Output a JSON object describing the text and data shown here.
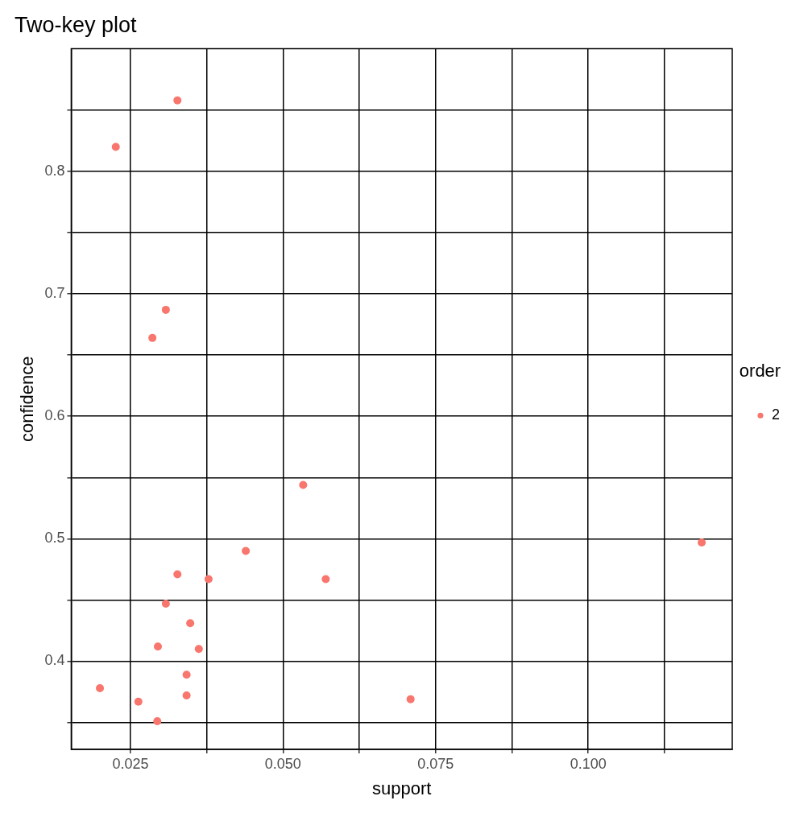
{
  "chart_data": {
    "type": "scatter",
    "title": "Two-key plot",
    "xlabel": "support",
    "ylabel": "confidence",
    "legend_title": "order",
    "xlim": [
      0.0153,
      0.1236
    ],
    "ylim": [
      0.328,
      0.9003
    ],
    "xticks": [
      0.025,
      {
        "value": 0.0375,
        "label": null
      },
      {
        "value": 0.05,
        "label": "0.050"
      },
      {
        "value": 0.0625,
        "label": null
      },
      0.075,
      {
        "value": 0.0875,
        "label": null
      },
      {
        "value": 0.1,
        "label": "0.100"
      },
      {
        "value": 0.1125,
        "label": null
      }
    ],
    "yticks": [
      {
        "value": 0.35,
        "label": null
      },
      0.4,
      {
        "value": 0.45,
        "label": null
      },
      0.5,
      {
        "value": 0.55,
        "label": null
      },
      0.6,
      {
        "value": 0.65,
        "label": null
      },
      0.7,
      {
        "value": 0.75,
        "label": null
      },
      0.8,
      {
        "value": 0.85,
        "label": null
      }
    ],
    "grid": true,
    "legend": "right",
    "marker": "circle",
    "series": [
      {
        "name": "2",
        "color": "#f8766d",
        "x": [
          0.0327,
          0.0226,
          0.0308,
          0.0286,
          0.0533,
          0.1186,
          0.0439,
          0.0327,
          0.0378,
          0.057,
          0.0308,
          0.0348,
          0.0295,
          0.0362,
          0.0342,
          0.02,
          0.0342,
          0.0263,
          0.0709,
          0.0294
        ],
        "values": [
          0.858,
          0.82,
          0.687,
          0.664,
          0.544,
          0.497,
          0.49,
          0.471,
          0.467,
          0.467,
          0.447,
          0.431,
          0.412,
          0.41,
          0.389,
          0.378,
          0.372,
          0.367,
          0.369,
          0.351
        ]
      }
    ]
  }
}
